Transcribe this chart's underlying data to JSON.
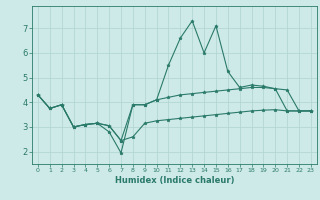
{
  "x": [
    0,
    1,
    2,
    3,
    4,
    5,
    6,
    7,
    8,
    9,
    10,
    11,
    12,
    13,
    14,
    15,
    16,
    17,
    18,
    19,
    20,
    21,
    22,
    23
  ],
  "line1": [
    4.3,
    3.75,
    3.9,
    3.0,
    3.1,
    3.15,
    3.05,
    2.45,
    2.6,
    3.15,
    3.25,
    3.3,
    3.35,
    3.4,
    3.45,
    3.5,
    3.55,
    3.6,
    3.65,
    3.68,
    3.7,
    3.65,
    3.65,
    3.65
  ],
  "line2": [
    4.3,
    3.75,
    3.9,
    3.0,
    3.1,
    3.15,
    2.8,
    1.95,
    3.9,
    3.9,
    4.1,
    5.5,
    6.6,
    7.3,
    6.0,
    7.1,
    5.25,
    4.6,
    4.7,
    4.65,
    4.55,
    4.5,
    3.65,
    3.65
  ],
  "line3": [
    4.3,
    3.75,
    3.9,
    3.0,
    3.1,
    3.15,
    3.05,
    2.45,
    3.9,
    3.9,
    4.1,
    4.2,
    4.3,
    4.35,
    4.4,
    4.45,
    4.5,
    4.55,
    4.6,
    4.6,
    4.55,
    3.65,
    3.65,
    3.65
  ],
  "xlabel": "Humidex (Indice chaleur)",
  "xlim": [
    -0.5,
    23.5
  ],
  "ylim": [
    1.5,
    7.9
  ],
  "yticks": [
    2,
    3,
    4,
    5,
    6,
    7
  ],
  "xticks": [
    0,
    1,
    2,
    3,
    4,
    5,
    6,
    7,
    8,
    9,
    10,
    11,
    12,
    13,
    14,
    15,
    16,
    17,
    18,
    19,
    20,
    21,
    22,
    23
  ],
  "line_color": "#2a7a6a",
  "bg_color": "#ceeae8",
  "grid_color": "#aed4d0"
}
